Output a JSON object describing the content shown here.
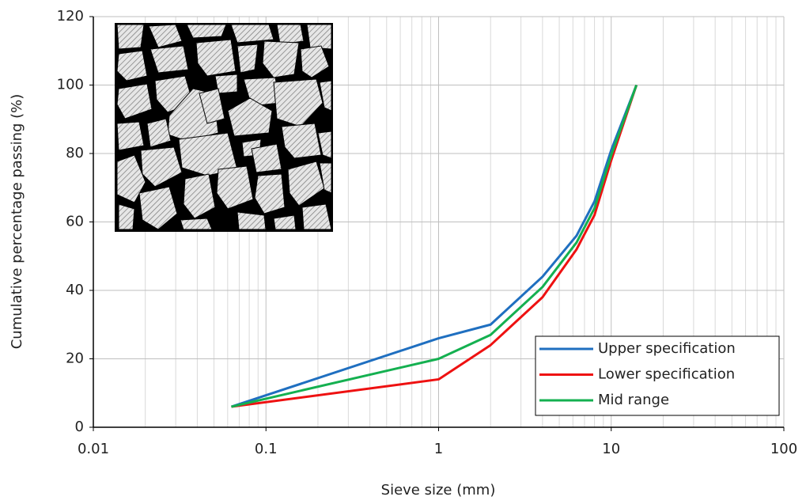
{
  "chart_data": {
    "type": "line",
    "x_label": "Sieve size (mm)",
    "y_label": "Cumulative percentage passing (%)",
    "x": [
      0.063,
      1,
      2,
      4,
      6.3,
      8,
      10,
      14
    ],
    "series": [
      {
        "name": "Upper specification",
        "color": "#1f6fc0",
        "values": [
          6,
          26,
          30,
          44,
          56,
          66,
          81,
          100
        ]
      },
      {
        "name": "Lower specification",
        "color": "#ee1111",
        "values": [
          6,
          14,
          24,
          38,
          52,
          62,
          78,
          100
        ]
      },
      {
        "name": "Mid range",
        "color": "#14b050",
        "values": [
          6,
          20,
          27,
          41,
          54,
          64,
          79.5,
          100
        ]
      }
    ],
    "xlim": [
      0.01,
      100
    ],
    "xticks": [
      0.01,
      0.1,
      1,
      10,
      100
    ],
    "xscale": "log",
    "ylim": [
      0,
      120
    ],
    "yticks": [
      0,
      20,
      40,
      60,
      80,
      100,
      120
    ],
    "grid": true,
    "minor_grid": true,
    "legend": "lower right"
  }
}
